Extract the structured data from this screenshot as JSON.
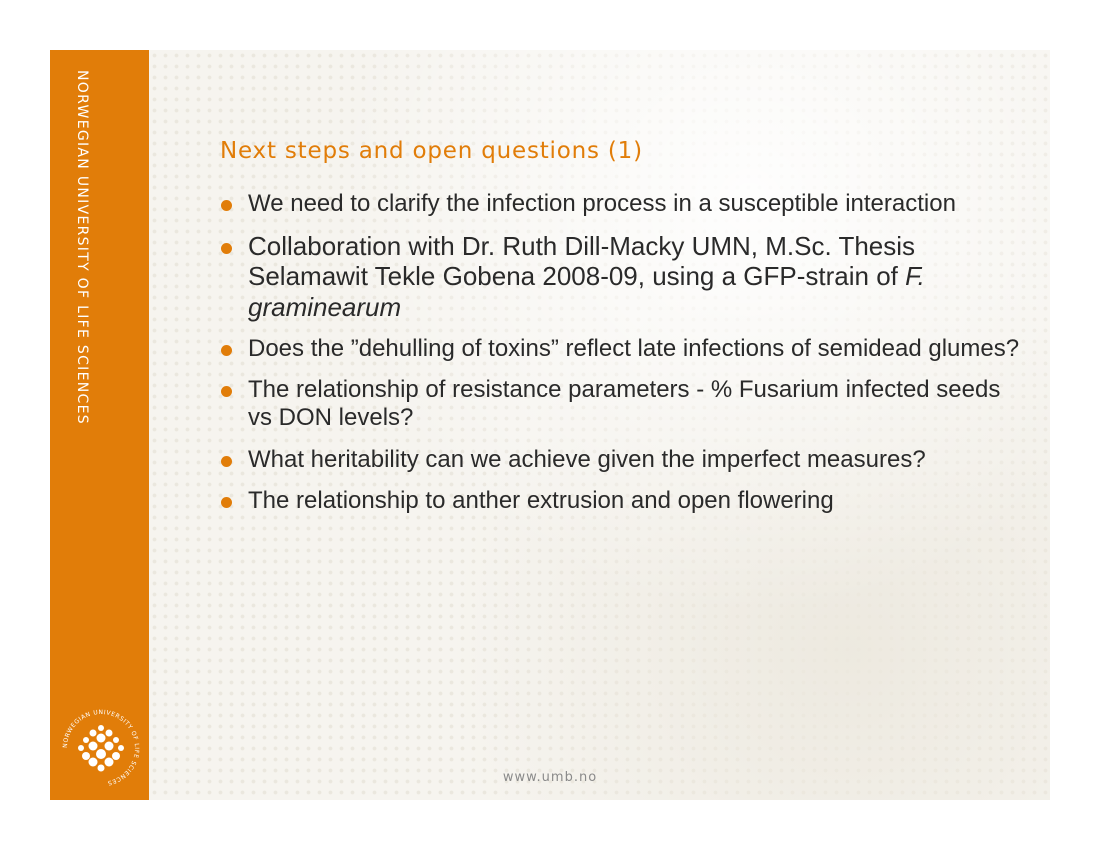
{
  "sidebar": {
    "vertical_text": "NORWEGIAN UNIVERSITY OF LIFE SCIENCES",
    "logo_ring_text": "NORWEGIAN UNIVERSITY OF LIFE SCIENCES"
  },
  "slide": {
    "title": "Next steps and open questions (1)",
    "bullets": [
      "We need to clarify the infection process in a susceptible interaction",
      "Collaboration with Dr. Ruth Dill-Macky UMN, M.Sc. Thesis Selamawit Tekle Gobena 2008-09, using a GFP-strain of",
      "F. graminearum",
      "Does the ”dehulling of toxins” reflect late infections of semidead glumes?",
      "The relationship of resistance parameters - % Fusarium infected seeds vs DON levels?",
      "What heritability can we achieve given the imperfect measures?",
      "The relationship to anther extrusion and open flowering"
    ]
  },
  "footer": {
    "url": "www.umb.no"
  },
  "colors": {
    "accent": "#e17d09",
    "text": "#2a2a2a",
    "footer": "#8a8a8a"
  }
}
